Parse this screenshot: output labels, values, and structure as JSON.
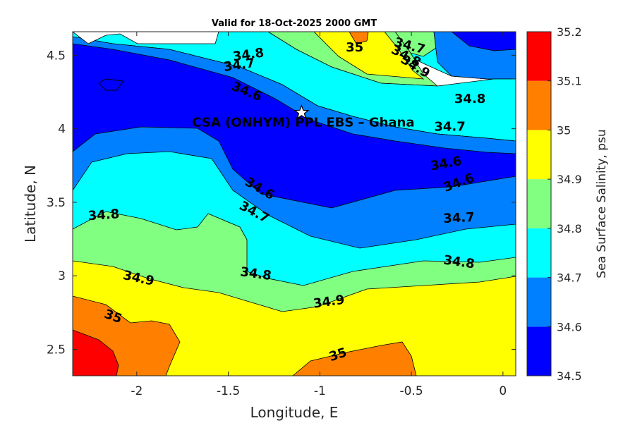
{
  "chart_data": {
    "type": "heatmap",
    "title": "Valid for 18-Oct-2025 2000 GMT",
    "xlabel": "Longitude, E",
    "ylabel": "Latitude, N",
    "colorbar_label": "Sea Surface Salinity, psu",
    "xlim": [
      -2.35,
      0.07
    ],
    "ylim": [
      2.32,
      4.66
    ],
    "xticks": [
      -2,
      -1.5,
      -1,
      -0.5,
      0
    ],
    "xtick_labels": [
      "-2",
      "-1.5",
      "-1",
      "-0.5",
      "0"
    ],
    "yticks": [
      2.5,
      3,
      3.5,
      4,
      4.5
    ],
    "ytick_labels": [
      "2.5",
      "3",
      "3.5",
      "4",
      "4.5"
    ],
    "levels": [
      34.5,
      34.6,
      34.7,
      34.8,
      34.9,
      35.0,
      35.1,
      35.2
    ],
    "level_labels": [
      "34.5",
      "34.6",
      "34.7",
      "34.8",
      "34.9",
      "35",
      "35.1",
      "35.2"
    ],
    "level_colors": [
      "#0000ff",
      "#0080ff",
      "#00ffff",
      "#80ff80",
      "#ffff00",
      "#ff8000",
      "#ff0000"
    ],
    "contour_labels": [
      {
        "text": "34.8",
        "lon": -1.39,
        "lat": 4.5,
        "angle": -8
      },
      {
        "text": "34.7",
        "lon": -1.44,
        "lat": 4.43,
        "angle": -8
      },
      {
        "text": "35",
        "lon": -0.81,
        "lat": 4.55,
        "angle": 0
      },
      {
        "text": "34.7",
        "lon": -0.51,
        "lat": 4.56,
        "angle": 15
      },
      {
        "text": "34.8",
        "lon": -0.53,
        "lat": 4.49,
        "angle": 28
      },
      {
        "text": "34.9",
        "lon": -0.48,
        "lat": 4.42,
        "angle": 32
      },
      {
        "text": "34.6",
        "lon": -1.4,
        "lat": 4.25,
        "angle": 22
      },
      {
        "text": "34.8",
        "lon": -0.18,
        "lat": 4.2,
        "angle": 0
      },
      {
        "text": "34.7",
        "lon": -0.29,
        "lat": 4.01,
        "angle": 0
      },
      {
        "text": "34.6",
        "lon": -0.31,
        "lat": 3.76,
        "angle": -10
      },
      {
        "text": "34.6",
        "lon": -0.24,
        "lat": 3.63,
        "angle": -20
      },
      {
        "text": "34.6",
        "lon": -1.33,
        "lat": 3.59,
        "angle": 30
      },
      {
        "text": "34.7",
        "lon": -1.36,
        "lat": 3.43,
        "angle": 28
      },
      {
        "text": "34.7",
        "lon": -0.24,
        "lat": 3.39,
        "angle": -3
      },
      {
        "text": "34.8",
        "lon": -2.18,
        "lat": 3.41,
        "angle": -4
      },
      {
        "text": "34.8",
        "lon": -0.24,
        "lat": 3.09,
        "angle": 8
      },
      {
        "text": "34.8",
        "lon": -1.35,
        "lat": 3.01,
        "angle": 8
      },
      {
        "text": "34.9",
        "lon": -1.99,
        "lat": 2.98,
        "angle": 12
      },
      {
        "text": "34.9",
        "lon": -0.95,
        "lat": 2.82,
        "angle": -8
      },
      {
        "text": "35",
        "lon": -2.13,
        "lat": 2.72,
        "angle": 20
      },
      {
        "text": "35",
        "lon": -0.9,
        "lat": 2.46,
        "angle": -18
      }
    ],
    "annotations": [
      {
        "text": "CSA (ONHYM) PPL EBS  – Ghana",
        "lon": -1.09,
        "lat": 4.04
      }
    ],
    "markers": [
      {
        "type": "star",
        "name": "site",
        "lon": -1.1,
        "lat": 4.11
      }
    ]
  }
}
